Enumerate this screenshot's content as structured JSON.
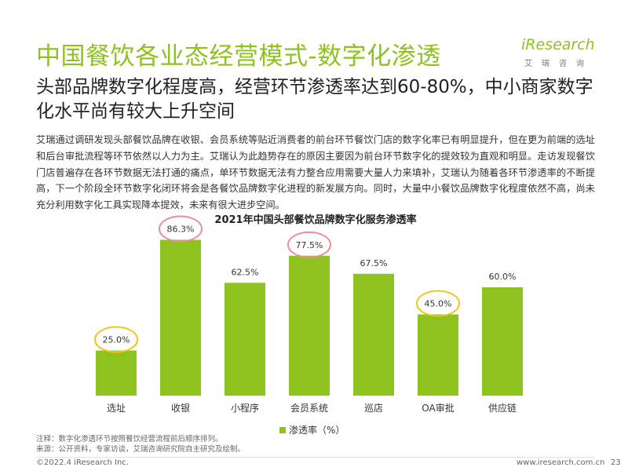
{
  "header": {
    "title": "中国餐饮各业态经营模式-数字化渗透",
    "logo_main": "iResearch",
    "logo_sub": "艾瑞咨询"
  },
  "subtitle": "头部品牌数字化程度高，经营环节渗透率达到60-80%，中小商家数字化水平尚有较大上升空间",
  "body_text": "艾瑞通过调研发现头部餐饮品牌在收银、会员系统等贴近消费者的前台环节餐饮门店的数字化率已有明显提升，但在更为前端的选址和后台审批流程等环节依然以人力为主。艾瑞认为此趋势存在的原因主要因为前台环节数字化的提效较为直观和明显。走访发现餐饮门店普遍存在各环节数据无法打通的痛点，单环节数据无法有力整合应用需要大量人力来填补，艾瑞认为随着各环节渗透率的不断提高，下一个阶段全环节数字化闭环将会是各餐饮品牌数字化进程的新发展方向。同时，大量中小餐饮品牌数字化程度依然不高，尚未充分利用数字化工具实现降本提效，未来有很大进步空间。",
  "chart_data": {
    "type": "bar",
    "title": "2021年中国头部餐饮品牌数字化服务渗透率",
    "categories": [
      "选址",
      "收银",
      "小程序",
      "会员系统",
      "巡店",
      "OA审批",
      "供应链"
    ],
    "series": [
      {
        "name": "渗透率（%）",
        "values": [
          25.0,
          86.3,
          62.5,
          77.5,
          67.5,
          45.0,
          60.0
        ]
      }
    ],
    "value_labels": [
      "25.0%",
      "86.3%",
      "62.5%",
      "77.5%",
      "67.5%",
      "45.0%",
      "60.0%"
    ],
    "highlight_circles": [
      {
        "category": "选址",
        "color": "#f0c419"
      },
      {
        "category": "收银",
        "color": "#ef8a9a"
      },
      {
        "category": "会员系统",
        "color": "#ef8a9a"
      },
      {
        "category": "OA审批",
        "color": "#f0c419"
      }
    ],
    "bar_color": "#8dc21f",
    "ylim": [
      0,
      100
    ],
    "grid": false,
    "legend_position": "bottom"
  },
  "notes": {
    "line1": "注释：数字化渗透环节按照餐饮经营流程前后顺序排列。",
    "line2": "来源：公开资料，专家访谈，艾瑞咨询研究院自主研究及绘制。"
  },
  "footer": {
    "copyright": "©2022.4 iResearch Inc.",
    "website": "www.iresearch.com.cn",
    "page": "23"
  }
}
